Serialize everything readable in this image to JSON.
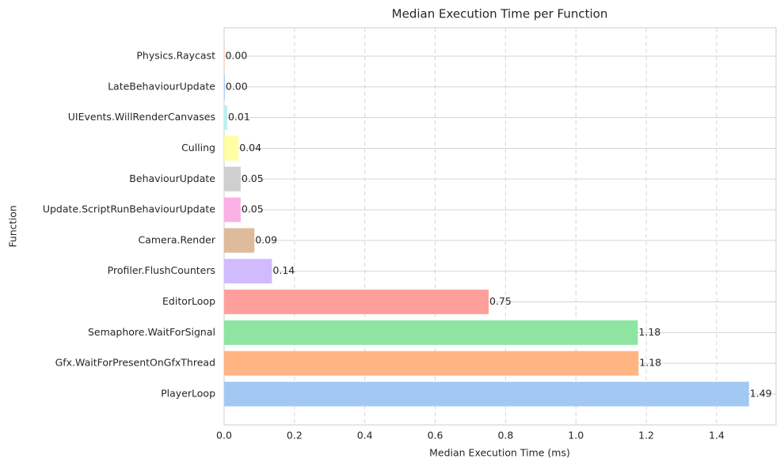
{
  "chart_data": {
    "type": "barh",
    "title": "Median Execution Time per Function",
    "x_label": "Median Execution Time (ms)",
    "y_label": "Function",
    "categories": [
      "PlayerLoop",
      "Gfx.WaitForPresentOnGfxThread",
      "Semaphore.WaitForSignal",
      "EditorLoop",
      "Profiler.FlushCounters",
      "Camera.Render",
      "Update.ScriptRunBehaviourUpdate",
      "BehaviourUpdate",
      "Culling",
      "UIEvents.WillRenderCanvases",
      "LateBehaviourUpdate",
      "Physics.Raycast"
    ],
    "values": [
      1.492,
      1.178,
      1.176,
      0.752,
      0.136,
      0.086,
      0.047,
      0.047,
      0.041,
      0.009,
      0.002,
      0.001
    ],
    "value_labels": [
      "1.49",
      "1.18",
      "1.18",
      "0.75",
      "0.14",
      "0.09",
      "0.05",
      "0.05",
      "0.04",
      "0.01",
      "0.00",
      "0.00"
    ],
    "colors": [
      "#a1c9f4",
      "#ffb482",
      "#8de5a1",
      "#ff9f9b",
      "#d0bbff",
      "#debb9b",
      "#fab0e4",
      "#cfcfcf",
      "#fffea3",
      "#b9f2f0",
      "#a1c9f4",
      "#ffb482"
    ],
    "xlim": [
      0,
      1.569
    ],
    "xticks": [
      {
        "value": 0,
        "label": "0.0"
      },
      0.2,
      0.4,
      0.6,
      0.8,
      {
        "value": 1,
        "label": "1.0"
      },
      1.2,
      1.4
    ],
    "grid": true
  }
}
